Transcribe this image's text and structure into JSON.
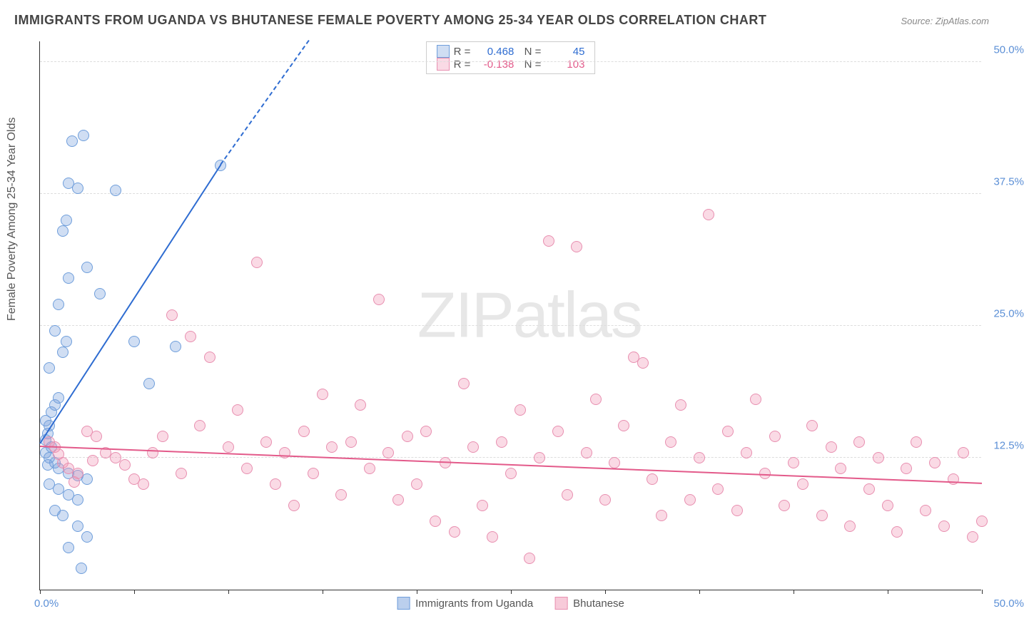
{
  "title": "IMMIGRANTS FROM UGANDA VS BHUTANESE FEMALE POVERTY AMONG 25-34 YEAR OLDS CORRELATION CHART",
  "source": "Source: ZipAtlas.com",
  "watermark": "ZIPatlas",
  "chart": {
    "type": "scatter",
    "y_axis_label": "Female Poverty Among 25-34 Year Olds",
    "xlim": [
      0,
      50
    ],
    "ylim": [
      0,
      52
    ],
    "x_corner_min": "0.0%",
    "x_corner_max": "50.0%",
    "y_ticks": [
      {
        "v": 12.5,
        "label": "12.5%"
      },
      {
        "v": 25.0,
        "label": "25.0%"
      },
      {
        "v": 37.5,
        "label": "37.5%"
      },
      {
        "v": 50.0,
        "label": "50.0%"
      }
    ],
    "x_tick_positions": [
      0,
      5,
      10,
      15,
      20,
      25,
      30,
      35,
      40,
      45,
      50
    ],
    "background_color": "#ffffff",
    "grid_color": "#dddddd",
    "series": [
      {
        "name": "Immigrants from Uganda",
        "fill": "rgba(120,160,220,0.35)",
        "stroke": "#6f9edb",
        "trend_color": "#2e6cd1",
        "trend": {
          "x1": 0,
          "y1": 13.8,
          "x2": 9.6,
          "y2": 40.2,
          "dash_to_x": 14.3,
          "dash_to_y": 52
        },
        "R": "0.468",
        "N": "45",
        "stat_color": "#2e6cd1",
        "points": [
          [
            0.3,
            14.2
          ],
          [
            0.4,
            14.8
          ],
          [
            0.5,
            15.5
          ],
          [
            0.6,
            16.8
          ],
          [
            0.8,
            17.5
          ],
          [
            1.0,
            18.2
          ],
          [
            1.2,
            22.5
          ],
          [
            1.4,
            23.5
          ],
          [
            0.5,
            21.0
          ],
          [
            0.8,
            24.5
          ],
          [
            1.0,
            27.0
          ],
          [
            1.5,
            29.5
          ],
          [
            2.5,
            30.5
          ],
          [
            3.2,
            28.0
          ],
          [
            1.2,
            34.0
          ],
          [
            1.4,
            35.0
          ],
          [
            1.5,
            38.5
          ],
          [
            2.0,
            38.0
          ],
          [
            1.7,
            42.5
          ],
          [
            2.3,
            43.0
          ],
          [
            4.0,
            37.8
          ],
          [
            9.6,
            40.2
          ],
          [
            5.0,
            23.5
          ],
          [
            5.8,
            19.5
          ],
          [
            7.2,
            23.0
          ],
          [
            0.3,
            13.0
          ],
          [
            0.5,
            12.5
          ],
          [
            0.8,
            12.0
          ],
          [
            1.0,
            11.5
          ],
          [
            1.5,
            11.0
          ],
          [
            2.0,
            10.8
          ],
          [
            2.5,
            10.5
          ],
          [
            0.5,
            10.0
          ],
          [
            1.0,
            9.5
          ],
          [
            1.5,
            9.0
          ],
          [
            2.0,
            8.5
          ],
          [
            0.8,
            7.5
          ],
          [
            1.2,
            7.0
          ],
          [
            2.0,
            6.0
          ],
          [
            2.5,
            5.0
          ],
          [
            1.5,
            4.0
          ],
          [
            2.2,
            2.0
          ],
          [
            0.3,
            16.0
          ],
          [
            0.6,
            13.5
          ],
          [
            0.4,
            11.8
          ]
        ]
      },
      {
        "name": "Bhutanese",
        "fill": "rgba(240,150,180,0.35)",
        "stroke": "#e88fb0",
        "trend_color": "#e35a8a",
        "trend": {
          "x1": 0,
          "y1": 13.5,
          "x2": 50,
          "y2": 10.0
        },
        "R": "-0.138",
        "N": "103",
        "stat_color": "#e35a8a",
        "points": [
          [
            0.5,
            14.0
          ],
          [
            0.8,
            13.5
          ],
          [
            1.0,
            12.8
          ],
          [
            1.2,
            12.0
          ],
          [
            1.5,
            11.5
          ],
          [
            2.0,
            11.0
          ],
          [
            2.5,
            15.0
          ],
          [
            3.0,
            14.5
          ],
          [
            3.5,
            13.0
          ],
          [
            4.0,
            12.5
          ],
          [
            4.5,
            11.8
          ],
          [
            5.0,
            10.5
          ],
          [
            5.5,
            10.0
          ],
          [
            6.0,
            13.0
          ],
          [
            6.5,
            14.5
          ],
          [
            7.0,
            26.0
          ],
          [
            7.5,
            11.0
          ],
          [
            8.0,
            24.0
          ],
          [
            8.5,
            15.5
          ],
          [
            9.0,
            22.0
          ],
          [
            10.0,
            13.5
          ],
          [
            10.5,
            17.0
          ],
          [
            11.0,
            11.5
          ],
          [
            11.5,
            31.0
          ],
          [
            12.0,
            14.0
          ],
          [
            12.5,
            10.0
          ],
          [
            13.0,
            13.0
          ],
          [
            13.5,
            8.0
          ],
          [
            14.0,
            15.0
          ],
          [
            14.5,
            11.0
          ],
          [
            15.0,
            18.5
          ],
          [
            15.5,
            13.5
          ],
          [
            16.0,
            9.0
          ],
          [
            16.5,
            14.0
          ],
          [
            17.0,
            17.5
          ],
          [
            17.5,
            11.5
          ],
          [
            18.0,
            27.5
          ],
          [
            18.5,
            13.0
          ],
          [
            19.0,
            8.5
          ],
          [
            19.5,
            14.5
          ],
          [
            20.0,
            10.0
          ],
          [
            20.5,
            15.0
          ],
          [
            21.0,
            6.5
          ],
          [
            21.5,
            12.0
          ],
          [
            22.0,
            5.5
          ],
          [
            22.5,
            19.5
          ],
          [
            23.0,
            13.5
          ],
          [
            23.5,
            8.0
          ],
          [
            24.0,
            5.0
          ],
          [
            24.5,
            14.0
          ],
          [
            25.0,
            11.0
          ],
          [
            25.5,
            17.0
          ],
          [
            26.0,
            3.0
          ],
          [
            26.5,
            12.5
          ],
          [
            27.0,
            33.0
          ],
          [
            27.5,
            15.0
          ],
          [
            28.0,
            9.0
          ],
          [
            28.5,
            32.5
          ],
          [
            29.0,
            13.0
          ],
          [
            29.5,
            18.0
          ],
          [
            30.0,
            8.5
          ],
          [
            30.5,
            12.0
          ],
          [
            31.0,
            15.5
          ],
          [
            31.5,
            22.0
          ],
          [
            32.0,
            21.5
          ],
          [
            32.5,
            10.5
          ],
          [
            33.0,
            7.0
          ],
          [
            33.5,
            14.0
          ],
          [
            34.0,
            17.5
          ],
          [
            34.5,
            8.5
          ],
          [
            35.0,
            12.5
          ],
          [
            35.5,
            35.5
          ],
          [
            36.0,
            9.5
          ],
          [
            36.5,
            15.0
          ],
          [
            37.0,
            7.5
          ],
          [
            37.5,
            13.0
          ],
          [
            38.0,
            18.0
          ],
          [
            38.5,
            11.0
          ],
          [
            39.0,
            14.5
          ],
          [
            39.5,
            8.0
          ],
          [
            40.0,
            12.0
          ],
          [
            40.5,
            10.0
          ],
          [
            41.0,
            15.5
          ],
          [
            41.5,
            7.0
          ],
          [
            42.0,
            13.5
          ],
          [
            42.5,
            11.5
          ],
          [
            43.0,
            6.0
          ],
          [
            43.5,
            14.0
          ],
          [
            44.0,
            9.5
          ],
          [
            44.5,
            12.5
          ],
          [
            45.0,
            8.0
          ],
          [
            45.5,
            5.5
          ],
          [
            46.0,
            11.5
          ],
          [
            46.5,
            14.0
          ],
          [
            47.0,
            7.5
          ],
          [
            47.5,
            12.0
          ],
          [
            48.0,
            6.0
          ],
          [
            48.5,
            10.5
          ],
          [
            49.0,
            13.0
          ],
          [
            49.5,
            5.0
          ],
          [
            50.0,
            6.5
          ],
          [
            1.8,
            10.2
          ],
          [
            2.8,
            12.2
          ]
        ]
      }
    ],
    "bottom_legend": [
      {
        "label": "Immigrants from Uganda",
        "fill": "rgba(120,160,220,0.5)",
        "stroke": "#6f9edb"
      },
      {
        "label": "Bhutanese",
        "fill": "rgba(240,150,180,0.5)",
        "stroke": "#e88fb0"
      }
    ]
  }
}
